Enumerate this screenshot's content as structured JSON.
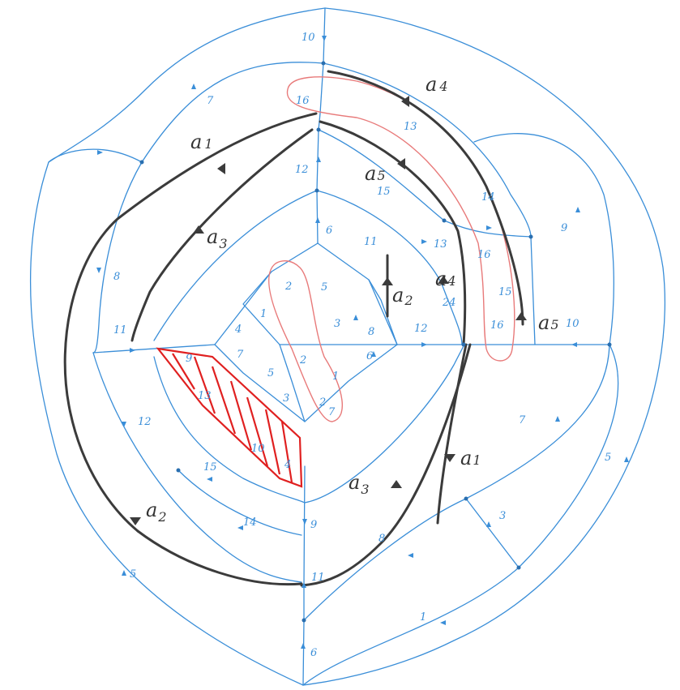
{
  "colors": {
    "edge": "#3a8ed8",
    "curve": "#3b3b3b",
    "highlight": "#e87a7a",
    "shaded_region": "#e02020"
  },
  "edge_labels": {
    "e10_top": "10",
    "e16_top": "16",
    "e13_upper": "13",
    "e12_center": "12",
    "e15_upper": "15",
    "e14_right": "14",
    "e9_right": "9",
    "e7_topleft": "7",
    "e8_left": "8",
    "e6_center": "6",
    "e11_center": "11",
    "e13_center": "13",
    "e16_right": "16",
    "e2_top": "2",
    "e5_top": "5",
    "e1_left": "1",
    "e4_left": "4",
    "e3_center": "3",
    "e8_center": "8",
    "e24_right": "24",
    "e15_right": "15",
    "e16_right2": "16",
    "e12_right": "12",
    "e10_right": "10",
    "e11_left": "11",
    "e9_shaded": "9",
    "e7_inner": "7",
    "e2_inner": "2",
    "e5_inner": "5",
    "e1_inner": "1",
    "e6_inner": "6",
    "e13_shaded": "13",
    "e3_inner": "3",
    "e2_lower": "2",
    "e7_lower": "7",
    "e12_lower": "12",
    "e10_shaded": "10",
    "e4_shaded": "4",
    "e15_lower": "15",
    "e14_lower": "14",
    "e9_bottom": "9",
    "e7_lowerright": "7",
    "e5_right": "5",
    "e3_bottomright": "3",
    "e8_bottom": "8",
    "e11_bottom": "11",
    "e1_bottom": "1",
    "e5_bottomleft": "5",
    "e6_bottom": "6"
  },
  "curve_labels": [
    {
      "name": "a1",
      "base": "a",
      "sub": "1"
    },
    {
      "name": "a4",
      "base": "a",
      "sub": "4"
    },
    {
      "name": "a5",
      "base": "a",
      "sub": "5"
    },
    {
      "name": "a3",
      "base": "a",
      "sub": "3"
    },
    {
      "name": "a2",
      "base": "a",
      "sub": "2"
    },
    {
      "name": "a4",
      "base": "a",
      "sub": "4"
    },
    {
      "name": "a5",
      "base": "a",
      "sub": "5"
    },
    {
      "name": "a1",
      "base": "a",
      "sub": "1"
    },
    {
      "name": "a3",
      "base": "a",
      "sub": "3"
    },
    {
      "name": "a2",
      "base": "a",
      "sub": "2"
    }
  ]
}
